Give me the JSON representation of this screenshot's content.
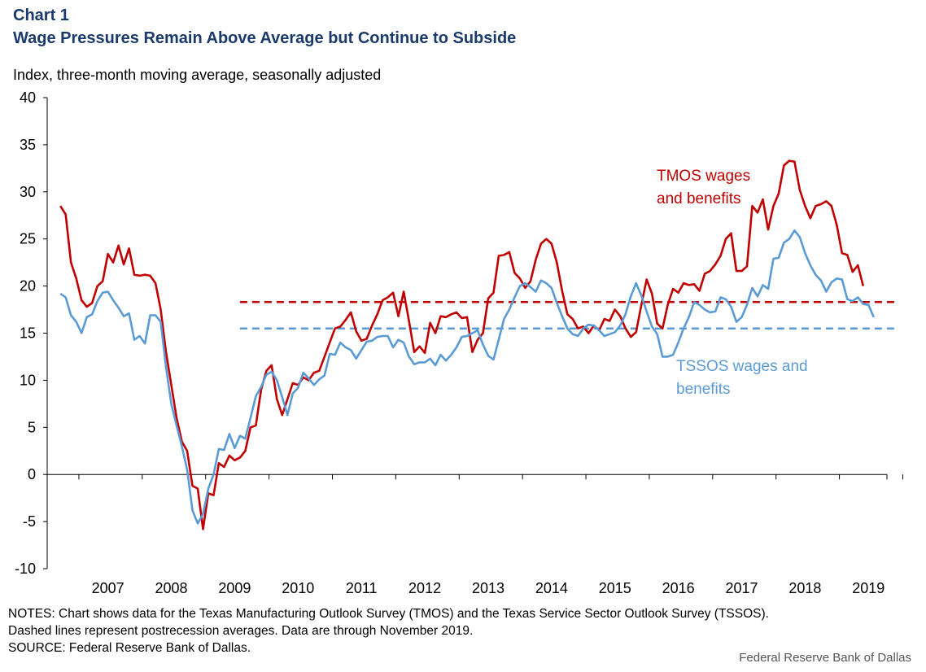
{
  "title_line1": "Chart 1",
  "title_line2": "Wage Pressures Remain Above Average but Continue to Subside",
  "colors": {
    "title": "#1a3a6b",
    "tmos": "#c00000",
    "tssos": "#5b9bd5"
  },
  "notes": [
    "NOTES: Chart shows data for the Texas Manufacturing Outlook Survey (TMOS) and the Texas Service Sector Outlook Survey (TSSOS).",
    "Dashed lines represent postrecession averages. Data are through November 2019.",
    "SOURCE: Federal Reserve Bank of Dallas."
  ],
  "credit": "Federal Reserve Bank of Dallas",
  "chart_data": {
    "type": "line",
    "title": "Wage Pressures Remain Above Average but Continue to Subside",
    "ylabel": "Index, three-month moving average, seasonally adjusted",
    "ylim": [
      -10,
      40
    ],
    "yticks": [
      -10,
      -5,
      0,
      5,
      10,
      15,
      20,
      25,
      30,
      35,
      40
    ],
    "x_start": "2006-09",
    "x_end": "2019-11",
    "x_tick_labels": [
      "2007",
      "2008",
      "2009",
      "2010",
      "2011",
      "2012",
      "2013",
      "2014",
      "2015",
      "2016",
      "2017",
      "2018",
      "2019"
    ],
    "grid": false,
    "series": [
      {
        "name": "TMOS wages and benefits",
        "label_lines": [
          "TMOS wages",
          "and benefits"
        ],
        "color": "#c00000",
        "start": "2006-09",
        "values": [
          28.5,
          27.6,
          22.5,
          20.8,
          18.5,
          17.8,
          18.2,
          20.0,
          20.5,
          23.4,
          22.5,
          24.3,
          22.3,
          24.0,
          21.2,
          21.1,
          21.2,
          21.1,
          20.3,
          17.5,
          13.0,
          9.5,
          6.0,
          3.5,
          2.5,
          -1.2,
          -1.5,
          -5.8,
          -2.0,
          -2.2,
          1.2,
          0.8,
          2.0,
          1.5,
          1.8,
          2.5,
          5.0,
          5.2,
          9.0,
          11.0,
          11.6,
          8.0,
          6.3,
          8.0,
          9.7,
          9.5,
          10.3,
          10.0,
          10.8,
          11.0,
          12.5,
          14.0,
          15.5,
          15.7,
          16.4,
          17.2,
          15.2,
          14.2,
          14.4,
          15.8,
          17.0,
          18.5,
          18.8,
          19.3,
          16.8,
          19.4,
          16.3,
          13.0,
          13.6,
          12.9,
          16.1,
          15.0,
          16.8,
          16.7,
          17.0,
          17.2,
          16.6,
          16.7,
          13.0,
          14.3,
          15.0,
          18.7,
          19.3,
          23.2,
          23.3,
          23.6,
          21.4,
          20.8,
          19.8,
          20.5,
          22.8,
          24.5,
          25.0,
          24.5,
          22.5,
          19.5,
          17.0,
          16.5,
          15.5,
          15.7,
          15.0,
          15.8,
          15.3,
          16.5,
          16.3,
          17.5,
          16.8,
          15.5,
          14.6,
          15.1,
          18.0,
          20.7,
          19.2,
          16.0,
          15.5,
          18.0,
          19.7,
          19.3,
          20.3,
          20.1,
          20.2,
          19.5,
          21.3,
          21.6,
          22.3,
          23.2,
          25.0,
          25.6,
          21.6,
          21.6,
          22.1,
          28.5,
          27.8,
          29.2,
          26.0,
          28.5,
          29.8,
          32.8,
          33.3,
          33.2,
          30.2,
          28.5,
          27.2,
          28.5,
          28.7,
          29.0,
          28.5,
          26.5,
          23.5,
          23.3,
          21.5,
          22.2,
          20.0
        ]
      },
      {
        "name": "TSSOS wages and benefits",
        "label_lines": [
          "TSSOS wages and",
          "benefits"
        ],
        "color": "#5b9bd5",
        "start": "2006-09",
        "values": [
          19.2,
          18.8,
          16.9,
          16.2,
          15.0,
          16.7,
          17.0,
          18.4,
          19.3,
          19.4,
          18.5,
          17.7,
          16.8,
          17.1,
          14.3,
          14.7,
          13.9,
          16.9,
          16.9,
          16.2,
          11.4,
          7.5,
          5.2,
          3.0,
          0.5,
          -3.8,
          -5.2,
          -4.2,
          -1.5,
          0.0,
          2.7,
          2.6,
          4.3,
          2.8,
          4.1,
          3.8,
          6.0,
          8.3,
          9.3,
          10.6,
          10.9,
          10.0,
          8.2,
          6.3,
          8.6,
          9.2,
          10.8,
          10.2,
          9.5,
          10.1,
          10.5,
          12.8,
          12.7,
          14.0,
          13.5,
          13.2,
          12.3,
          13.2,
          14.1,
          14.2,
          14.6,
          14.7,
          14.7,
          13.5,
          14.3,
          14.0,
          12.5,
          11.7,
          11.9,
          11.9,
          12.3,
          11.6,
          12.7,
          12.1,
          12.7,
          13.5,
          14.6,
          14.7,
          15.0,
          15.3,
          13.8,
          12.6,
          12.2,
          14.3,
          16.5,
          17.5,
          18.8,
          20.0,
          20.3,
          19.9,
          19.4,
          20.6,
          20.3,
          19.8,
          18.2,
          16.8,
          15.5,
          14.9,
          14.7,
          15.5,
          15.9,
          15.8,
          15.3,
          14.7,
          14.9,
          15.1,
          15.8,
          17.0,
          18.9,
          20.3,
          19.0,
          17.3,
          15.7,
          14.9,
          12.5,
          12.5,
          12.7,
          14.0,
          15.5,
          16.7,
          18.3,
          18.0,
          17.5,
          17.2,
          17.3,
          18.8,
          18.6,
          17.8,
          16.2,
          16.7,
          18.0,
          19.8,
          18.9,
          20.1,
          19.7,
          22.9,
          23.0,
          24.6,
          25.0,
          25.9,
          25.2,
          23.5,
          22.2,
          21.2,
          20.6,
          19.4,
          20.4,
          20.8,
          20.7,
          18.6,
          18.4,
          18.8,
          18.1,
          18.0,
          16.7
        ]
      }
    ],
    "reference_lines": [
      {
        "name": "TMOS postrecession average",
        "value": 18.3,
        "color": "#c00000",
        "style": "dashed",
        "from": "2009-07"
      },
      {
        "name": "TSSOS postrecession average",
        "value": 15.5,
        "color": "#5b9bd5",
        "style": "dashed",
        "from": "2009-07"
      }
    ]
  }
}
